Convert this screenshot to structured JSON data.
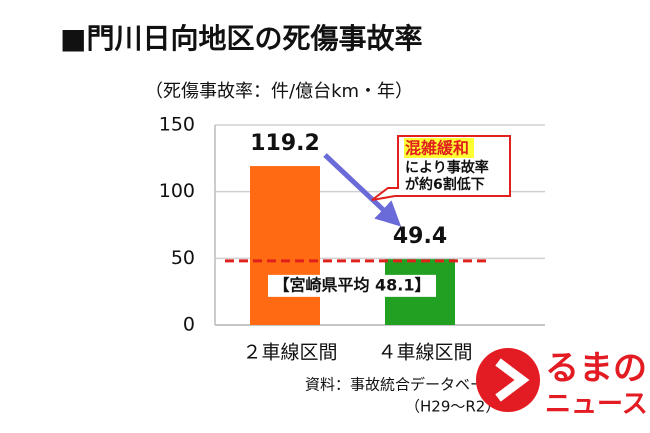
{
  "chart_data": {
    "type": "bar",
    "title": "■門川日向地区の死傷事故率",
    "y_label": "（死傷事故率：件/億台km・年）",
    "categories": [
      "２車線区間",
      "４車線区間"
    ],
    "values": [
      119.2,
      49.4
    ],
    "colors": [
      "#ff6a13",
      "#22a022"
    ],
    "ylim": [
      0,
      150
    ],
    "yticks": [
      0,
      50,
      100,
      150
    ],
    "grid": true,
    "reference": {
      "value": 48.1,
      "label": "【宮崎県平均 48.1】",
      "color": "#e0201c"
    },
    "callout": [
      "混雑緩和",
      "により事故率",
      "が約6割低下"
    ],
    "source": [
      "資料：事故統合データベース",
      "（H29～R2）"
    ],
    "watermark": [
      "るまの",
      "ニュース"
    ]
  }
}
